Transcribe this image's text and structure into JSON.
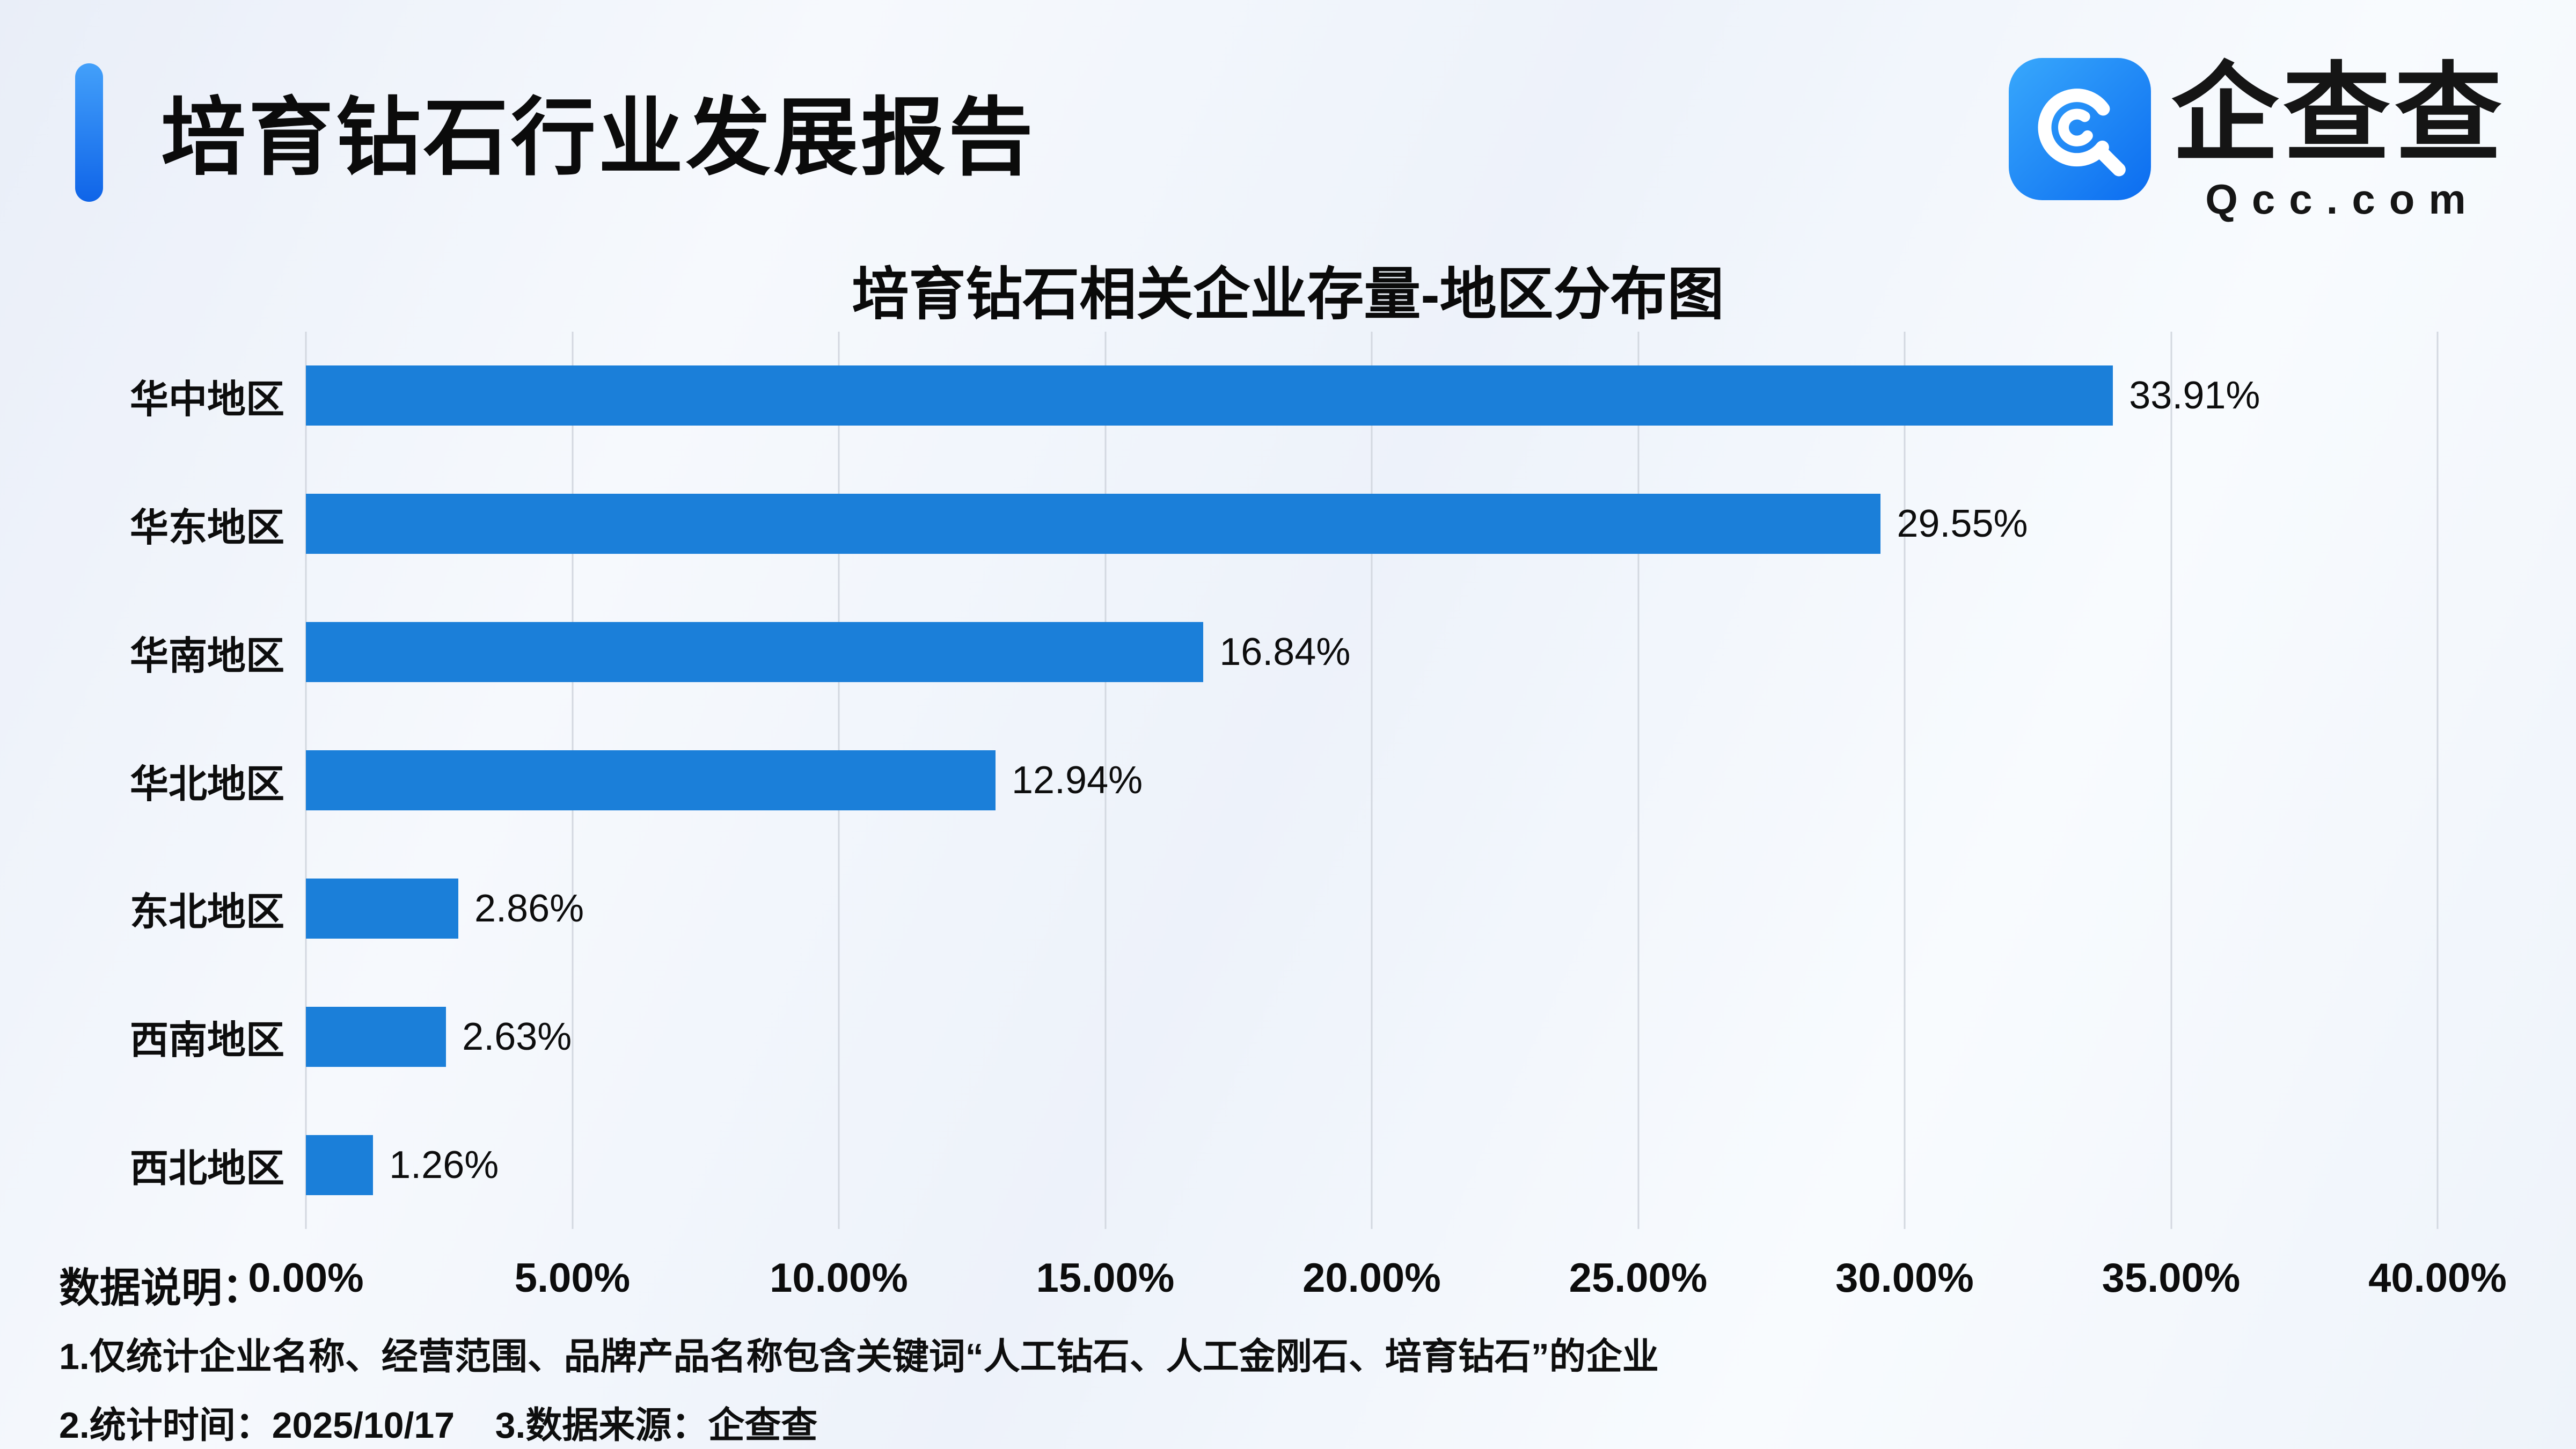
{
  "header": {
    "title": "培育钻石行业发展报告"
  },
  "logo": {
    "name": "企查查",
    "domain": "Qcc.com"
  },
  "chart_data": {
    "type": "bar",
    "orientation": "horizontal",
    "title": "培育钻石相关企业存量-地区分布图",
    "categories": [
      "华中地区",
      "华东地区",
      "华南地区",
      "华北地区",
      "东北地区",
      "西南地区",
      "西北地区"
    ],
    "values": [
      33.91,
      29.55,
      16.84,
      12.94,
      2.86,
      2.63,
      1.26
    ],
    "value_labels": [
      "33.91%",
      "29.55%",
      "16.84%",
      "12.94%",
      "2.86%",
      "2.63%",
      "1.26%"
    ],
    "x_ticks": [
      "0.00%",
      "5.00%",
      "10.00%",
      "15.00%",
      "20.00%",
      "25.00%",
      "30.00%",
      "35.00%",
      "40.00%"
    ],
    "x_tick_values": [
      0,
      5,
      10,
      15,
      20,
      25,
      30,
      35,
      40
    ],
    "xlim": [
      0,
      40
    ],
    "grid": true,
    "legend": false,
    "bar_color": "#1b7fd9"
  },
  "footer": {
    "label": "数据说明：",
    "note1": "1.仅统计企业名称、经营范围、品牌产品名称包含关键词“人工钻石、人工金刚石、培育钻石”的企业",
    "note2": "2.统计时间：2025/10/17    3.数据来源：企查查"
  }
}
